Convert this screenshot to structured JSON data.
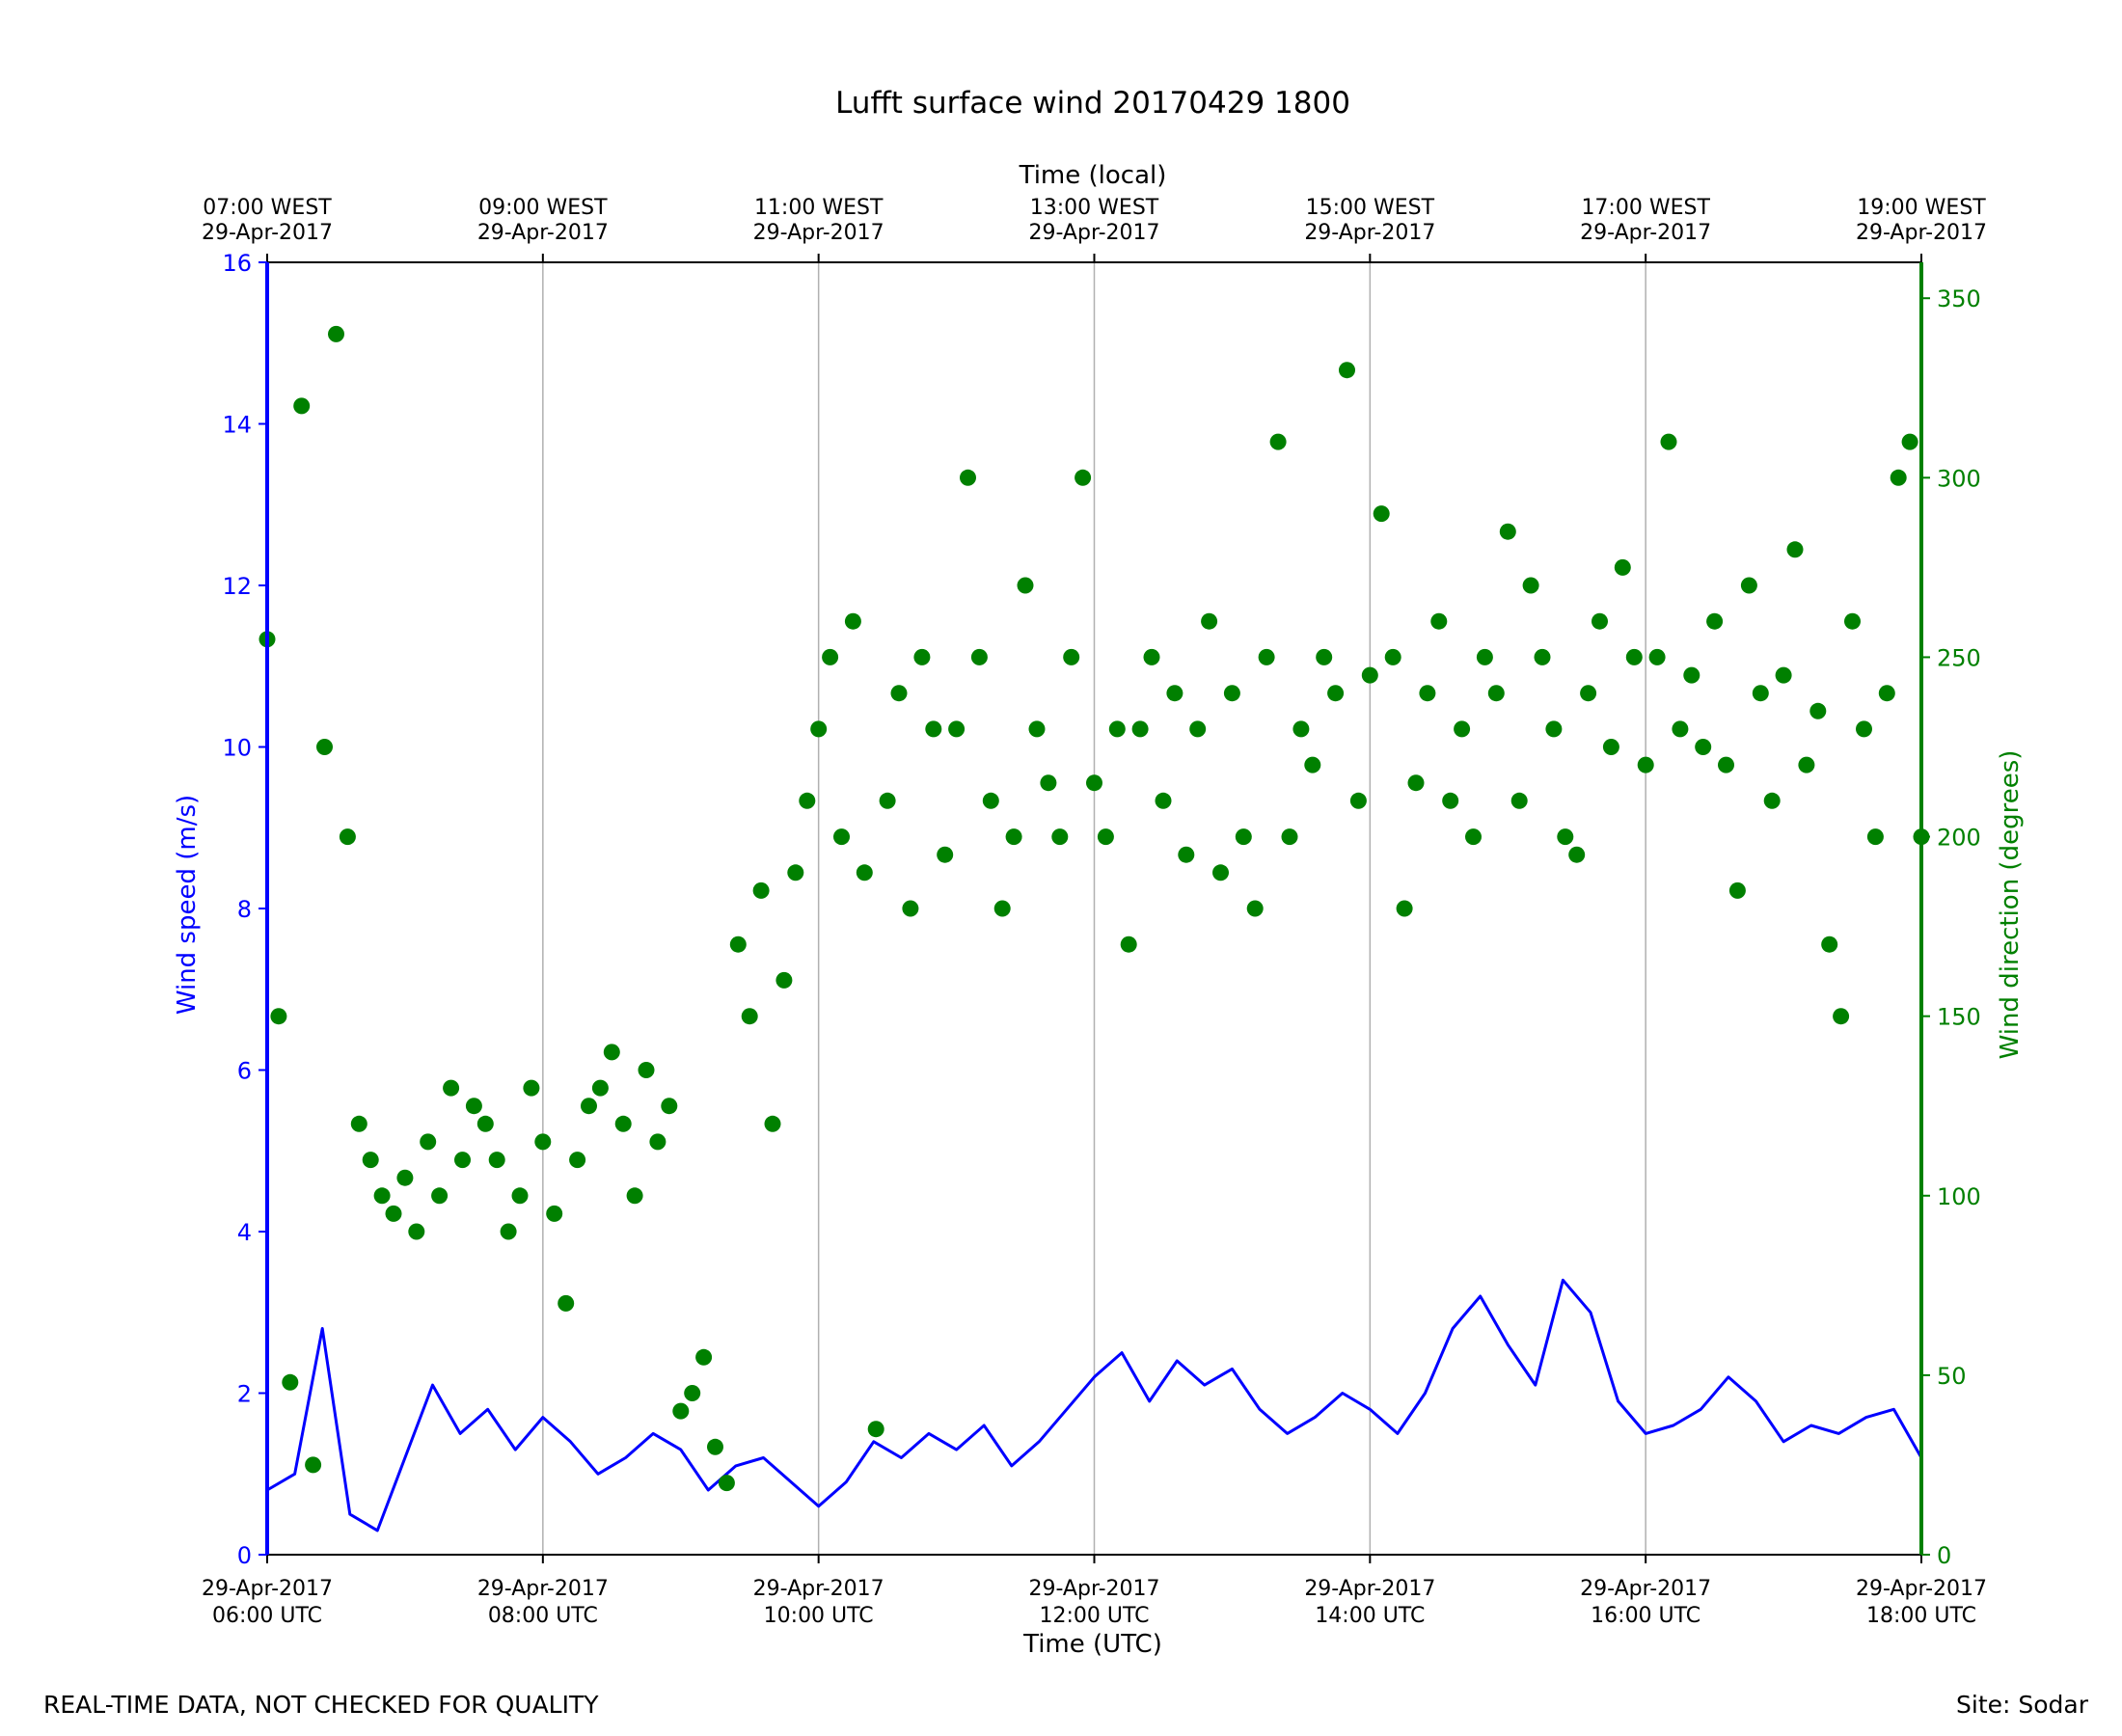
{
  "chart_data": {
    "type": "line",
    "title": "Lufft surface wind 20170429 1800",
    "xlabel": "Time (UTC)",
    "x2label": "Time (local)",
    "ylabel": "Wind speed (m/s)",
    "y2label": "Wind direction (degrees)",
    "xlim": [
      "2017-04-29 06:00",
      "2017-04-29 18:00"
    ],
    "ylim": [
      0,
      16
    ],
    "y2lim": [
      0,
      360
    ],
    "y_ticks": [
      "0",
      "2",
      "4",
      "6",
      "8",
      "10",
      "12",
      "14",
      "16"
    ],
    "y2_ticks": [
      "0",
      "50",
      "100",
      "150",
      "200",
      "250",
      "300",
      "350"
    ],
    "x_ticks": [
      {
        "line1": "29-Apr-2017",
        "line2": "06:00 UTC"
      },
      {
        "line1": "29-Apr-2017",
        "line2": "08:00 UTC"
      },
      {
        "line1": "29-Apr-2017",
        "line2": "10:00 UTC"
      },
      {
        "line1": "29-Apr-2017",
        "line2": "12:00 UTC"
      },
      {
        "line1": "29-Apr-2017",
        "line2": "14:00 UTC"
      },
      {
        "line1": "29-Apr-2017",
        "line2": "16:00 UTC"
      },
      {
        "line1": "29-Apr-2017",
        "line2": "18:00 UTC"
      }
    ],
    "x2_ticks": [
      {
        "line1": "07:00 WEST",
        "line2": "29-Apr-2017"
      },
      {
        "line1": "09:00 WEST",
        "line2": "29-Apr-2017"
      },
      {
        "line1": "11:00 WEST",
        "line2": "29-Apr-2017"
      },
      {
        "line1": "13:00 WEST",
        "line2": "29-Apr-2017"
      },
      {
        "line1": "15:00 WEST",
        "line2": "29-Apr-2017"
      },
      {
        "line1": "17:00 WEST",
        "line2": "29-Apr-2017"
      },
      {
        "line1": "19:00 WEST",
        "line2": "29-Apr-2017"
      }
    ],
    "grid": "vertical",
    "colors": {
      "speed": "#0000ff",
      "direction": "#008000",
      "grid": "#b0b0b0",
      "frame": "#000000"
    },
    "series": [
      {
        "name": "Wind speed (m/s)",
        "axis": "left",
        "style": "line",
        "x": [
          "06:00",
          "06:12",
          "06:24",
          "06:36",
          "06:48",
          "07:00",
          "07:12",
          "07:24",
          "07:36",
          "07:48",
          "08:00",
          "08:12",
          "08:24",
          "08:36",
          "08:48",
          "09:00",
          "09:12",
          "09:24",
          "09:36",
          "09:48",
          "10:00",
          "10:12",
          "10:24",
          "10:36",
          "10:48",
          "11:00",
          "11:12",
          "11:24",
          "11:36",
          "11:48",
          "12:00",
          "12:12",
          "12:24",
          "12:36",
          "12:48",
          "13:00",
          "13:12",
          "13:24",
          "13:36",
          "13:48",
          "14:00",
          "14:12",
          "14:24",
          "14:36",
          "14:48",
          "15:00",
          "15:12",
          "15:24",
          "15:36",
          "15:48",
          "16:00",
          "16:12",
          "16:24",
          "16:36",
          "16:48",
          "17:00",
          "17:12",
          "17:24",
          "17:36",
          "17:48",
          "18:00"
        ],
        "values": [
          0.8,
          1.0,
          2.8,
          0.5,
          0.3,
          1.2,
          2.1,
          1.5,
          1.8,
          1.3,
          1.7,
          1.4,
          1.0,
          1.2,
          1.5,
          1.3,
          0.8,
          1.1,
          1.2,
          0.9,
          0.6,
          0.9,
          1.4,
          1.2,
          1.5,
          1.3,
          1.6,
          1.1,
          1.4,
          1.8,
          2.2,
          2.5,
          1.9,
          2.4,
          2.1,
          2.3,
          1.8,
          1.5,
          1.7,
          2.0,
          1.8,
          1.5,
          2.0,
          2.8,
          3.2,
          2.6,
          2.1,
          3.4,
          3.0,
          1.9,
          1.5,
          1.6,
          1.8,
          2.2,
          1.9,
          1.4,
          1.6,
          1.5,
          1.7,
          1.8,
          1.2
        ]
      },
      {
        "name": "Wind direction (degrees)",
        "axis": "right",
        "style": "markers",
        "x": [
          "06:00",
          "06:05",
          "06:10",
          "06:15",
          "06:20",
          "06:25",
          "06:30",
          "06:35",
          "06:40",
          "06:45",
          "06:50",
          "06:55",
          "07:00",
          "07:05",
          "07:10",
          "07:15",
          "07:20",
          "07:25",
          "07:30",
          "07:35",
          "07:40",
          "07:45",
          "07:50",
          "07:55",
          "08:00",
          "08:05",
          "08:10",
          "08:15",
          "08:20",
          "08:25",
          "08:30",
          "08:35",
          "08:40",
          "08:45",
          "08:50",
          "08:55",
          "09:00",
          "09:05",
          "09:10",
          "09:15",
          "09:20",
          "09:25",
          "09:30",
          "09:35",
          "09:40",
          "09:45",
          "09:50",
          "09:55",
          "10:00",
          "10:05",
          "10:10",
          "10:15",
          "10:20",
          "10:25",
          "10:30",
          "10:35",
          "10:40",
          "10:45",
          "10:50",
          "10:55",
          "11:00",
          "11:05",
          "11:10",
          "11:15",
          "11:20",
          "11:25",
          "11:30",
          "11:35",
          "11:40",
          "11:45",
          "11:50",
          "11:55",
          "12:00",
          "12:05",
          "12:10",
          "12:15",
          "12:20",
          "12:25",
          "12:30",
          "12:35",
          "12:40",
          "12:45",
          "12:50",
          "12:55",
          "13:00",
          "13:05",
          "13:10",
          "13:15",
          "13:20",
          "13:25",
          "13:30",
          "13:35",
          "13:40",
          "13:45",
          "13:50",
          "13:55",
          "14:00",
          "14:05",
          "14:10",
          "14:15",
          "14:20",
          "14:25",
          "14:30",
          "14:35",
          "14:40",
          "14:45",
          "14:50",
          "14:55",
          "15:00",
          "15:05",
          "15:10",
          "15:15",
          "15:20",
          "15:25",
          "15:30",
          "15:35",
          "15:40",
          "15:45",
          "15:50",
          "15:55",
          "16:00",
          "16:05",
          "16:10",
          "16:15",
          "16:20",
          "16:25",
          "16:30",
          "16:35",
          "16:40",
          "16:45",
          "16:50",
          "16:55",
          "17:00",
          "17:05",
          "17:10",
          "17:15",
          "17:20",
          "17:25",
          "17:30",
          "17:35",
          "17:40",
          "17:45",
          "17:50",
          "17:55",
          "18:00"
        ],
        "values": [
          255,
          150,
          48,
          320,
          25,
          225,
          340,
          200,
          120,
          110,
          100,
          95,
          105,
          90,
          115,
          100,
          130,
          110,
          125,
          120,
          110,
          90,
          100,
          130,
          115,
          95,
          70,
          110,
          125,
          130,
          140,
          120,
          100,
          135,
          115,
          125,
          40,
          45,
          55,
          30,
          20,
          170,
          150,
          185,
          120,
          160,
          190,
          210,
          230,
          250,
          200,
          260,
          190,
          35,
          210,
          240,
          180,
          250,
          230,
          195,
          230,
          300,
          250,
          210,
          180,
          200,
          270,
          230,
          215,
          200,
          250,
          300,
          215,
          200,
          230,
          170,
          230,
          250,
          210,
          240,
          195,
          230,
          260,
          190,
          240,
          200,
          180,
          250,
          310,
          200,
          230,
          220,
          250,
          240,
          330,
          210,
          245,
          290,
          250,
          180,
          215,
          240,
          260,
          210,
          230,
          200,
          250,
          240,
          285,
          210,
          270,
          250,
          230,
          200,
          195,
          240,
          260,
          225,
          275,
          250,
          220,
          250,
          310,
          230,
          245,
          225,
          260,
          220,
          185,
          270,
          240,
          210,
          245,
          280,
          220,
          235,
          170,
          150,
          260,
          230,
          200,
          240,
          300,
          310,
          200
        ]
      }
    ]
  },
  "footer": {
    "left": "REAL-TIME DATA, NOT CHECKED FOR QUALITY",
    "right": "Site: Sodar"
  }
}
